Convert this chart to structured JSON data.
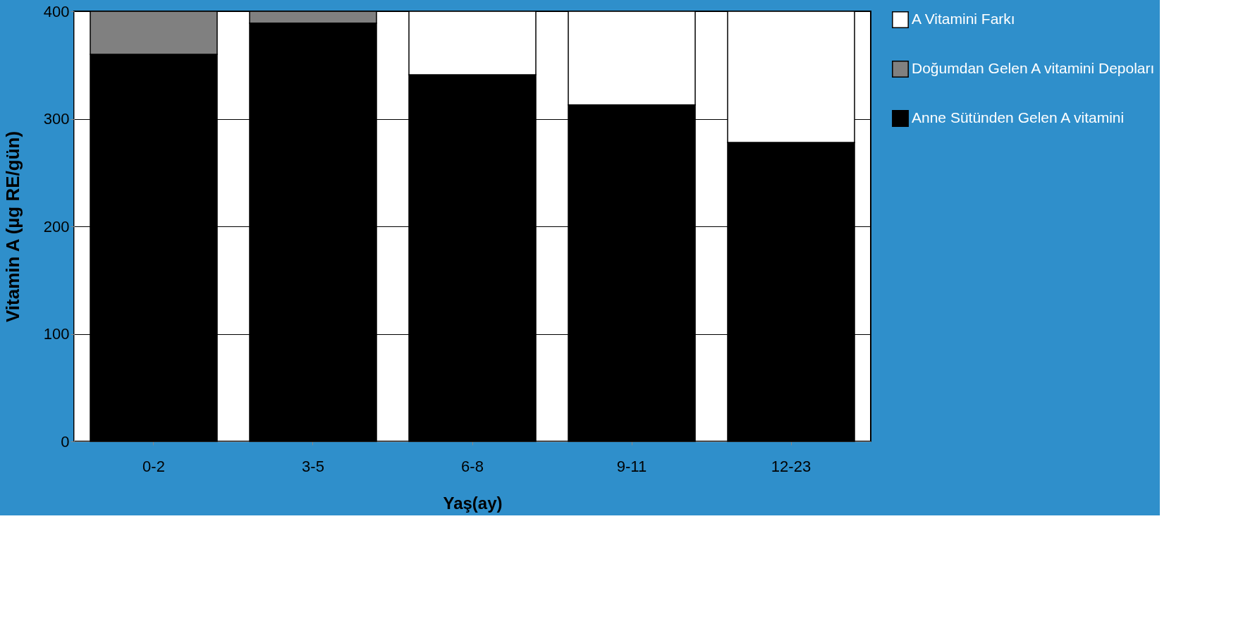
{
  "chart_data": {
    "type": "bar",
    "stacked": true,
    "xlabel": "Yaş(ay)",
    "ylabel": "Vitamin A (µg RE/gün)",
    "categories": [
      "0-2",
      "3-5",
      "6-8",
      "9-11",
      "12-23"
    ],
    "series": [
      {
        "name": "Anne Sütünden Gelen A vitamini",
        "color": "#000000",
        "values": [
          360,
          389,
          341,
          313,
          278
        ]
      },
      {
        "name": "Doğumdan Gelen A vitamini Depoları",
        "color": "#808080",
        "values": [
          40,
          11,
          null,
          null,
          null
        ]
      },
      {
        "name": "A Vitamini Farkı",
        "color": "#ffffff",
        "values": [
          null,
          null,
          59,
          87,
          122
        ]
      }
    ],
    "ylim": [
      0,
      400
    ],
    "yticks": [
      0,
      100,
      200,
      300,
      400
    ],
    "grid": "y",
    "legend": "right"
  }
}
